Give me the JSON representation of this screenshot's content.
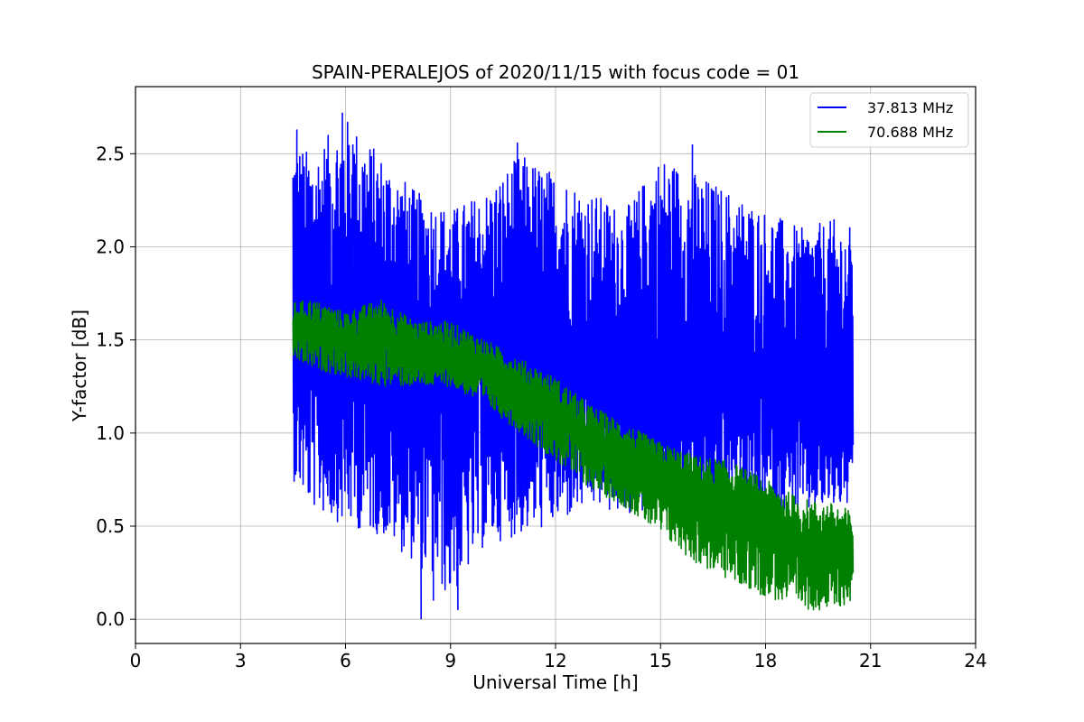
{
  "chart_data": {
    "type": "line",
    "title": "SPAIN-PERALEJOS of 2020/11/15 with focus code = 01",
    "xlabel": "Universal Time [h]",
    "ylabel": "Y-factor [dB]",
    "xlim": [
      0,
      24
    ],
    "ylim": [
      -0.13,
      2.86
    ],
    "xticks": [
      0,
      3,
      6,
      9,
      12,
      15,
      18,
      21,
      24
    ],
    "xtick_labels": [
      "0",
      "3",
      "6",
      "9",
      "12",
      "15",
      "18",
      "21",
      "24"
    ],
    "yticks": [
      0.0,
      0.5,
      1.0,
      1.5,
      2.0,
      2.5
    ],
    "ytick_labels": [
      "0.0",
      "0.5",
      "1.0",
      "1.5",
      "2.0",
      "2.5"
    ],
    "grid": true,
    "legend_position": "top-right",
    "series": [
      {
        "name": "37.813 MHz",
        "color": "#0000ff",
        "x_range": [
          4.5,
          20.5
        ],
        "x": [
          4.5,
          5,
          6,
          7,
          8,
          9,
          10,
          11,
          12,
          13,
          14,
          15,
          16,
          17,
          18,
          19,
          20,
          20.5
        ],
        "mean": [
          1.5,
          1.5,
          1.5,
          1.5,
          1.45,
          1.42,
          1.4,
          1.4,
          1.38,
          1.35,
          1.35,
          1.35,
          1.3,
          1.28,
          1.25,
          1.22,
          1.2,
          1.2
        ],
        "upper": [
          2.6,
          2.5,
          2.7,
          2.5,
          2.3,
          2.2,
          2.3,
          2.5,
          2.4,
          2.3,
          2.2,
          2.5,
          2.4,
          2.3,
          2.2,
          2.1,
          2.15,
          2.1
        ],
        "lower": [
          0.75,
          0.6,
          0.5,
          0.45,
          0.3,
          0.1,
          0.4,
          0.45,
          0.5,
          0.6,
          0.55,
          0.6,
          0.5,
          0.65,
          0.6,
          0.55,
          0.6,
          0.6
        ],
        "peaks": [
          [
            5.9,
            2.72
          ],
          [
            6.2,
            2.55
          ],
          [
            4.6,
            2.63
          ],
          [
            15.9,
            2.55
          ],
          [
            10.9,
            2.56
          ],
          [
            8.15,
            0.0
          ],
          [
            9.2,
            0.05
          ],
          [
            8.5,
            0.1
          ]
        ]
      },
      {
        "name": "70.688 MHz",
        "color": "#008000",
        "x_range": [
          4.5,
          20.5
        ],
        "x": [
          4.5,
          5,
          6,
          7,
          8,
          9,
          10,
          11,
          12,
          13,
          14,
          15,
          16,
          17,
          18,
          19,
          20,
          20.5
        ],
        "mean": [
          1.55,
          1.55,
          1.5,
          1.5,
          1.45,
          1.42,
          1.35,
          1.2,
          1.1,
          0.95,
          0.85,
          0.75,
          0.65,
          0.6,
          0.5,
          0.4,
          0.35,
          0.35
        ],
        "upper": [
          1.7,
          1.72,
          1.65,
          1.72,
          1.6,
          1.6,
          1.5,
          1.4,
          1.3,
          1.15,
          1.05,
          0.95,
          0.88,
          0.85,
          0.75,
          0.65,
          0.62,
          0.58
        ],
        "lower": [
          1.4,
          1.35,
          1.3,
          1.25,
          1.25,
          1.25,
          1.15,
          1.0,
          0.85,
          0.7,
          0.6,
          0.45,
          0.3,
          0.2,
          0.12,
          0.05,
          0.05,
          0.1
        ]
      }
    ]
  }
}
